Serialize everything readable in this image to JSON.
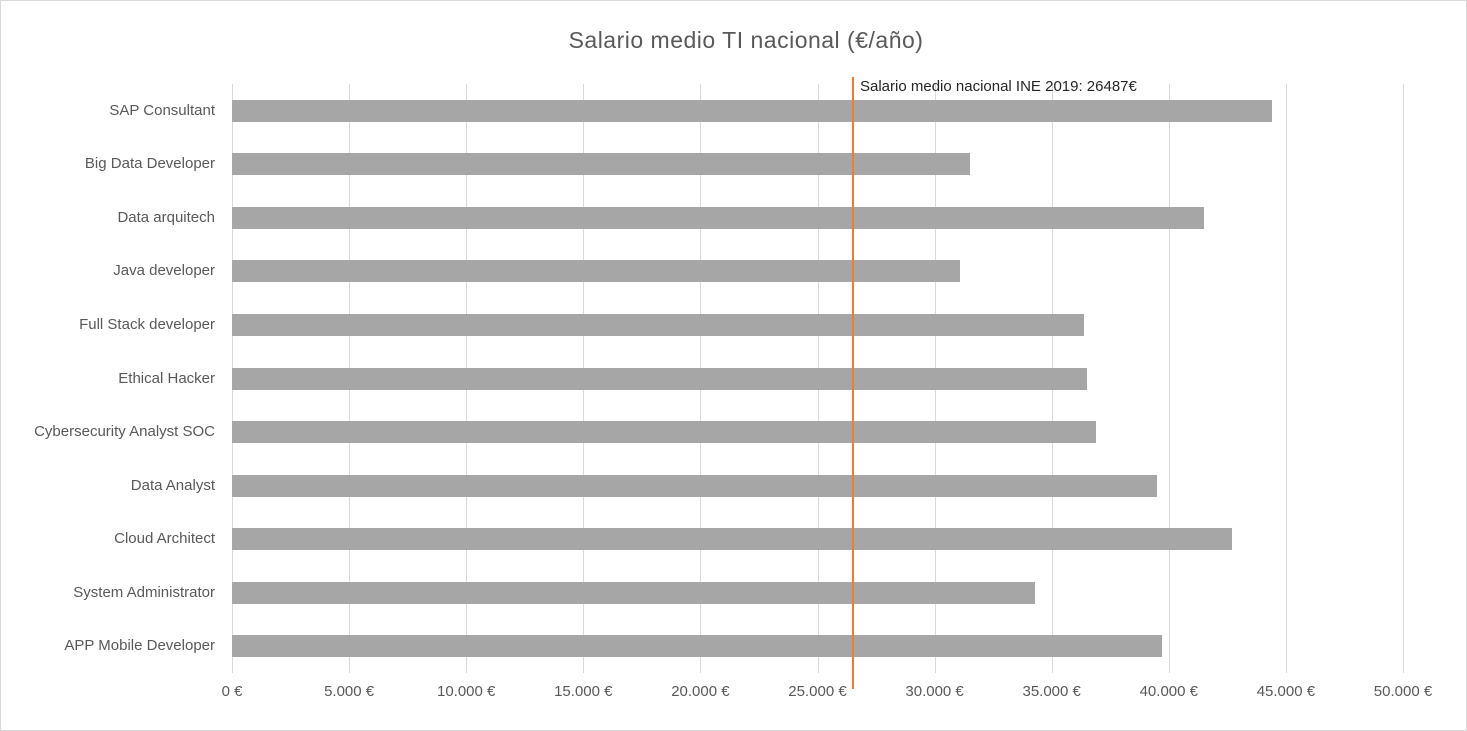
{
  "title": "Salario medio TI nacional (€/año)",
  "chart_data": {
    "type": "bar",
    "orientation": "horizontal",
    "title": "Salario medio TI nacional (€/año)",
    "xlabel": "",
    "ylabel": "",
    "categories": [
      "SAP Consultant",
      "Big Data Developer",
      "Data arquitech",
      "Java developer",
      "Full Stack developer",
      "Ethical Hacker",
      "Cybersecurity Analyst SOC",
      "Data Analyst",
      "Cloud Architect",
      "System Administrator",
      "APP Mobile Developer"
    ],
    "values": [
      44400,
      31500,
      41500,
      31100,
      36400,
      36500,
      36900,
      39500,
      42700,
      34300,
      39700
    ],
    "xlim": [
      0,
      50000
    ],
    "x_tick_values": [
      0,
      5000,
      10000,
      15000,
      20000,
      25000,
      30000,
      35000,
      40000,
      45000,
      50000
    ],
    "x_tick_labels": [
      "0 €",
      "5.000 €",
      "10.000 €",
      "15.000 €",
      "20.000 €",
      "25.000 €",
      "30.000 €",
      "35.000 €",
      "40.000 €",
      "45.000 €",
      "50.000 €"
    ],
    "grid": true,
    "legend": false,
    "bar_color": "#a6a6a6",
    "gridline_color": "#d9d9d9",
    "reference_line": {
      "value": 26487,
      "label": "Salario medio nacional INE 2019: 26487€",
      "color": "#ed7d31"
    }
  },
  "colors": {
    "title_text": "#595959",
    "axis_text": "#595959",
    "annotation_text": "#262626",
    "bar": "#a6a6a6",
    "gridline": "#d9d9d9",
    "reference_line": "#ed7d31",
    "border": "#d9d9d9",
    "background": "#ffffff"
  }
}
